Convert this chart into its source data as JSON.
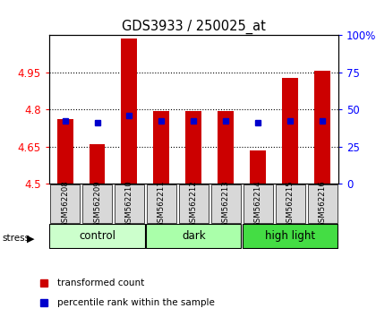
{
  "title": "GDS3933 / 250025_at",
  "samples": [
    "GSM562208",
    "GSM562209",
    "GSM562210",
    "GSM562211",
    "GSM562212",
    "GSM562213",
    "GSM562214",
    "GSM562215",
    "GSM562216"
  ],
  "red_values": [
    4.76,
    4.66,
    5.085,
    4.795,
    4.795,
    4.795,
    4.635,
    4.925,
    4.955
  ],
  "blue_values": [
    4.755,
    4.745,
    4.775,
    4.755,
    4.755,
    4.755,
    4.745,
    4.755,
    4.755
  ],
  "y_min": 4.5,
  "y_max": 5.1,
  "y_ticks": [
    4.5,
    4.65,
    4.8,
    4.95
  ],
  "y2_ticks": [
    0,
    25,
    50,
    75,
    100
  ],
  "group_colors": [
    "#ccffcc",
    "#aaffaa",
    "#44dd44"
  ],
  "group_labels": [
    "control",
    "dark",
    "high light"
  ],
  "group_ranges": [
    [
      0,
      2
    ],
    [
      3,
      5
    ],
    [
      6,
      8
    ]
  ],
  "bar_color": "#cc0000",
  "dot_color": "#0000cc",
  "bar_width": 0.5,
  "sample_box_color": "#d8d8d8",
  "stress_label": "stress",
  "legend_red": "transformed count",
  "legend_blue": "percentile rank within the sample"
}
